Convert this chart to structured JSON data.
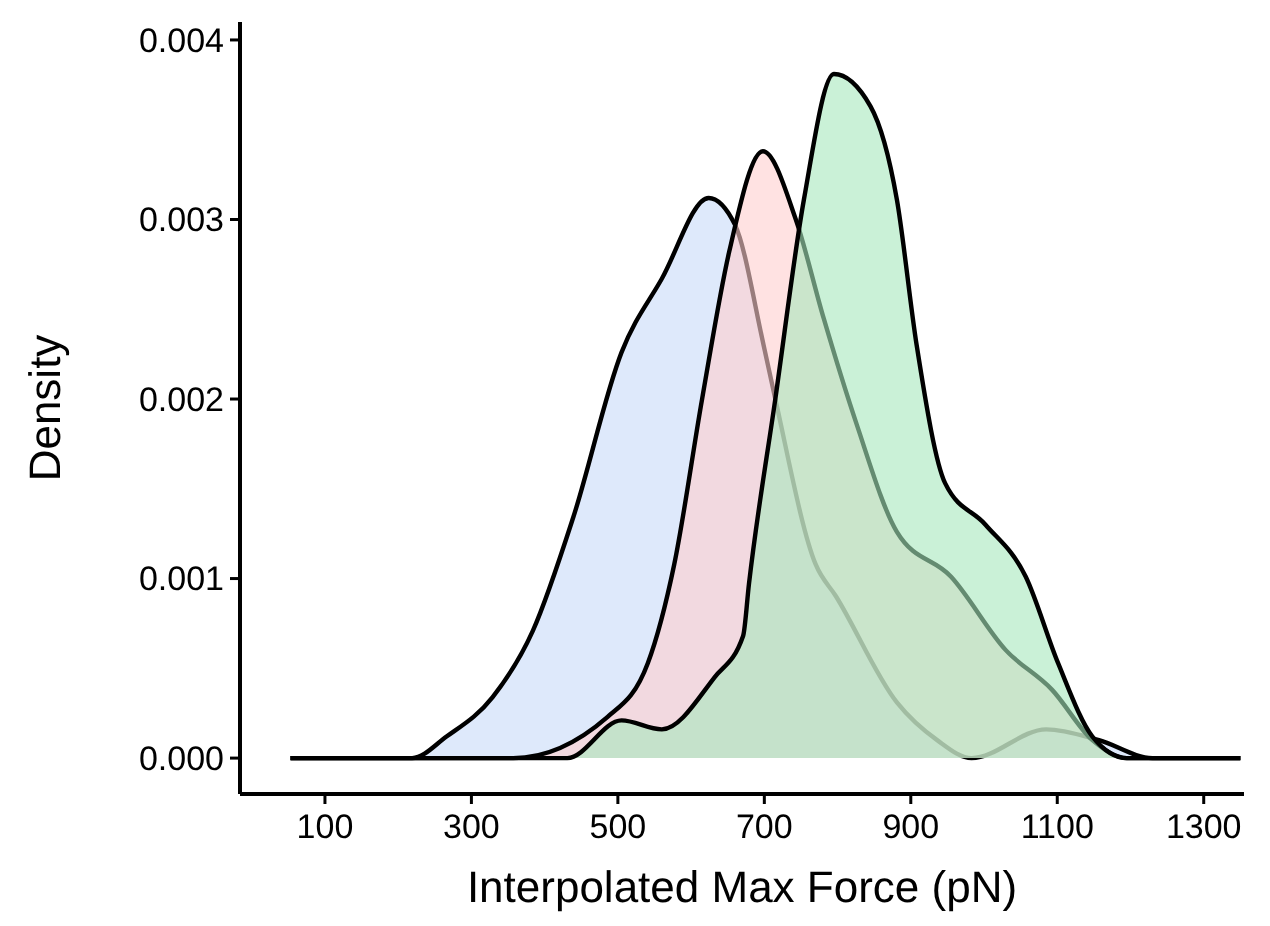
{
  "chart_data": {
    "type": "area",
    "xlabel": "Interpolated Max Force (pN)",
    "ylabel": "Density",
    "xlim": [
      -16,
      1355
    ],
    "ylim": [
      -0.0002,
      0.0041
    ],
    "xticks": [
      100,
      300,
      500,
      700,
      900,
      1100,
      1300
    ],
    "yticks": [
      {
        "value": 0,
        "label": "0.000"
      },
      {
        "value": 0.001,
        "label": "0.001"
      },
      {
        "value": 0.002,
        "label": "0.002"
      },
      {
        "value": 0.003,
        "label": "0.003"
      },
      {
        "value": 0.004,
        "label": "0.004"
      }
    ],
    "grid": false,
    "series": [
      {
        "color": "#c8daf8",
        "x": [
          53,
          150,
          219,
          266,
          329,
          384,
          439,
          505,
          560,
          624,
          660,
          699,
          715,
          770,
          798,
          881,
          936,
          983,
          1085,
          1157,
          1230,
          1350
        ],
        "values": [
          0,
          0,
          0,
          0.00012,
          0.00034,
          0.00071,
          0.00134,
          0.00226,
          0.00267,
          0.00312,
          0.00297,
          0.0023,
          0.002,
          0.00108,
          0.0009,
          0.00031,
          0.0001,
          0,
          0.00016,
          0.0001,
          0,
          0
        ]
      },
      {
        "color": "#ffcfcf",
        "x": [
          53,
          250,
          357,
          486,
          541,
          577,
          615,
          652,
          698,
          743,
          781,
          826,
          881,
          955,
          1030,
          1093,
          1148,
          1195,
          1280,
          1350
        ],
        "values": [
          0,
          0,
          0,
          0.00023,
          0.00053,
          0.00108,
          0.002,
          0.00282,
          0.00338,
          0.003,
          0.00245,
          0.00186,
          0.00126,
          0.00101,
          0.0006,
          0.00038,
          0.0001,
          0,
          0,
          0
        ]
      },
      {
        "color": "#a6e8bd",
        "x": [
          53,
          350,
          431,
          505,
          560,
          632,
          671,
          679,
          715,
          754,
          795,
          845,
          881,
          908,
          947,
          1002,
          1057,
          1101,
          1148,
          1195,
          1300,
          1350
        ],
        "values": [
          0,
          0,
          0,
          0.00021,
          0.00016,
          0.00045,
          0.00068,
          0.00097,
          0.002,
          0.00311,
          0.00381,
          0.00363,
          0.00311,
          0.0023,
          0.00153,
          0.0013,
          0.00101,
          0.00053,
          0.00012,
          0,
          0,
          0
        ]
      }
    ]
  }
}
